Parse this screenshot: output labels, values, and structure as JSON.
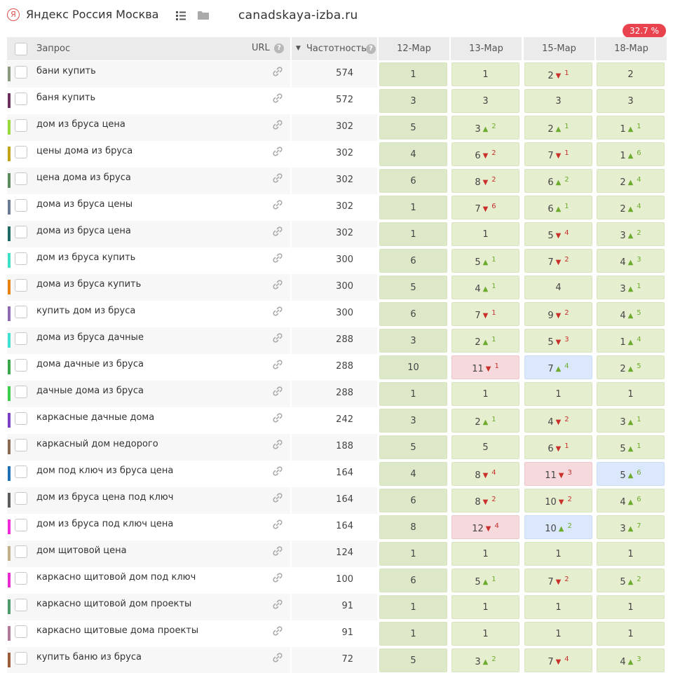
{
  "header": {
    "engine_icon": "yandex-icon",
    "engine_glyph": "Я",
    "region": "Яндекс Россия Москва",
    "site": "canadskaya-izba.ru",
    "visibility_badge": "32.7 %"
  },
  "table": {
    "col_query": "Запрос",
    "col_url": "URL",
    "col_freq": "Частотность",
    "help_glyph": "?",
    "sort_glyph": "▼",
    "dates": [
      "12-Мар",
      "13-Мар",
      "15-Мар",
      "18-Мар"
    ],
    "rows": [
      {
        "query": "бани купить",
        "freq": "574",
        "color": "#8a9a7e",
        "cells": [
          {
            "v": "1",
            "d": "",
            "dir": "",
            "bg": ""
          },
          {
            "v": "1",
            "d": "",
            "dir": "",
            "bg": ""
          },
          {
            "v": "2",
            "d": "1",
            "dir": "down",
            "bg": ""
          },
          {
            "v": "2",
            "d": "",
            "dir": "",
            "bg": ""
          }
        ]
      },
      {
        "query": "баня купить",
        "freq": "572",
        "color": "#6b2f5e",
        "cells": [
          {
            "v": "3",
            "d": "",
            "dir": "",
            "bg": ""
          },
          {
            "v": "3",
            "d": "",
            "dir": "",
            "bg": ""
          },
          {
            "v": "3",
            "d": "",
            "dir": "",
            "bg": ""
          },
          {
            "v": "3",
            "d": "",
            "dir": "",
            "bg": ""
          }
        ]
      },
      {
        "query": "дом из бруса цена",
        "freq": "302",
        "color": "#9ad93b",
        "cells": [
          {
            "v": "5",
            "d": "",
            "dir": "",
            "bg": ""
          },
          {
            "v": "3",
            "d": "2",
            "dir": "up",
            "bg": ""
          },
          {
            "v": "2",
            "d": "1",
            "dir": "up",
            "bg": ""
          },
          {
            "v": "1",
            "d": "1",
            "dir": "up",
            "bg": ""
          }
        ]
      },
      {
        "query": "цены дома из бруса",
        "freq": "302",
        "color": "#c3a318",
        "cells": [
          {
            "v": "4",
            "d": "",
            "dir": "",
            "bg": ""
          },
          {
            "v": "6",
            "d": "2",
            "dir": "down",
            "bg": ""
          },
          {
            "v": "7",
            "d": "1",
            "dir": "down",
            "bg": ""
          },
          {
            "v": "1",
            "d": "6",
            "dir": "up",
            "bg": ""
          }
        ]
      },
      {
        "query": "цена дома из бруса",
        "freq": "302",
        "color": "#5c8a5c",
        "cells": [
          {
            "v": "6",
            "d": "",
            "dir": "",
            "bg": ""
          },
          {
            "v": "8",
            "d": "2",
            "dir": "down",
            "bg": ""
          },
          {
            "v": "6",
            "d": "2",
            "dir": "up",
            "bg": ""
          },
          {
            "v": "2",
            "d": "4",
            "dir": "up",
            "bg": ""
          }
        ]
      },
      {
        "query": "дома из бруса цены",
        "freq": "302",
        "color": "#6c7a95",
        "cells": [
          {
            "v": "1",
            "d": "",
            "dir": "",
            "bg": ""
          },
          {
            "v": "7",
            "d": "6",
            "dir": "down",
            "bg": ""
          },
          {
            "v": "6",
            "d": "1",
            "dir": "up",
            "bg": ""
          },
          {
            "v": "2",
            "d": "4",
            "dir": "up",
            "bg": ""
          }
        ]
      },
      {
        "query": "дома из бруса цена",
        "freq": "302",
        "color": "#1e6a63",
        "cells": [
          {
            "v": "1",
            "d": "",
            "dir": "",
            "bg": ""
          },
          {
            "v": "1",
            "d": "",
            "dir": "",
            "bg": ""
          },
          {
            "v": "5",
            "d": "4",
            "dir": "down",
            "bg": ""
          },
          {
            "v": "3",
            "d": "2",
            "dir": "up",
            "bg": ""
          }
        ]
      },
      {
        "query": "дом из бруса купить",
        "freq": "300",
        "color": "#3de0c4",
        "cells": [
          {
            "v": "6",
            "d": "",
            "dir": "",
            "bg": ""
          },
          {
            "v": "5",
            "d": "1",
            "dir": "up",
            "bg": ""
          },
          {
            "v": "7",
            "d": "2",
            "dir": "down",
            "bg": ""
          },
          {
            "v": "4",
            "d": "3",
            "dir": "up",
            "bg": ""
          }
        ]
      },
      {
        "query": "дома из бруса купить",
        "freq": "300",
        "color": "#e8820c",
        "cells": [
          {
            "v": "5",
            "d": "",
            "dir": "",
            "bg": ""
          },
          {
            "v": "4",
            "d": "1",
            "dir": "up",
            "bg": ""
          },
          {
            "v": "4",
            "d": "",
            "dir": "",
            "bg": ""
          },
          {
            "v": "3",
            "d": "1",
            "dir": "up",
            "bg": ""
          }
        ]
      },
      {
        "query": "купить дом из бруса",
        "freq": "300",
        "color": "#8e6bb0",
        "cells": [
          {
            "v": "6",
            "d": "",
            "dir": "",
            "bg": ""
          },
          {
            "v": "7",
            "d": "1",
            "dir": "down",
            "bg": ""
          },
          {
            "v": "9",
            "d": "2",
            "dir": "down",
            "bg": ""
          },
          {
            "v": "4",
            "d": "5",
            "dir": "up",
            "bg": ""
          }
        ]
      },
      {
        "query": "дома из бруса дачные",
        "freq": "288",
        "color": "#3ee0cf",
        "cells": [
          {
            "v": "3",
            "d": "",
            "dir": "",
            "bg": ""
          },
          {
            "v": "2",
            "d": "1",
            "dir": "up",
            "bg": ""
          },
          {
            "v": "5",
            "d": "3",
            "dir": "down",
            "bg": ""
          },
          {
            "v": "1",
            "d": "4",
            "dir": "up",
            "bg": ""
          }
        ]
      },
      {
        "query": "дома дачные из бруса",
        "freq": "288",
        "color": "#3aa84a",
        "cells": [
          {
            "v": "10",
            "d": "",
            "dir": "",
            "bg": ""
          },
          {
            "v": "11",
            "d": "1",
            "dir": "down",
            "bg": "red"
          },
          {
            "v": "7",
            "d": "4",
            "dir": "up",
            "bg": "blue"
          },
          {
            "v": "2",
            "d": "5",
            "dir": "up",
            "bg": ""
          }
        ]
      },
      {
        "query": "дачные дома из бруса",
        "freq": "288",
        "color": "#3ccd4a",
        "cells": [
          {
            "v": "1",
            "d": "",
            "dir": "",
            "bg": ""
          },
          {
            "v": "1",
            "d": "",
            "dir": "",
            "bg": ""
          },
          {
            "v": "1",
            "d": "",
            "dir": "",
            "bg": ""
          },
          {
            "v": "1",
            "d": "",
            "dir": "",
            "bg": ""
          }
        ]
      },
      {
        "query": "каркасные дачные дома",
        "freq": "242",
        "color": "#7a3fc6",
        "cells": [
          {
            "v": "3",
            "d": "",
            "dir": "",
            "bg": ""
          },
          {
            "v": "2",
            "d": "1",
            "dir": "up",
            "bg": ""
          },
          {
            "v": "4",
            "d": "2",
            "dir": "down",
            "bg": ""
          },
          {
            "v": "3",
            "d": "1",
            "dir": "up",
            "bg": ""
          }
        ]
      },
      {
        "query": "каркасный дом недорого",
        "freq": "188",
        "color": "#8a6a52",
        "cells": [
          {
            "v": "5",
            "d": "",
            "dir": "",
            "bg": ""
          },
          {
            "v": "5",
            "d": "",
            "dir": "",
            "bg": ""
          },
          {
            "v": "6",
            "d": "1",
            "dir": "down",
            "bg": ""
          },
          {
            "v": "5",
            "d": "1",
            "dir": "up",
            "bg": ""
          }
        ]
      },
      {
        "query": "дом под ключ из бруса цена",
        "freq": "164",
        "color": "#1f6fb5",
        "cells": [
          {
            "v": "4",
            "d": "",
            "dir": "",
            "bg": ""
          },
          {
            "v": "8",
            "d": "4",
            "dir": "down",
            "bg": ""
          },
          {
            "v": "11",
            "d": "3",
            "dir": "down",
            "bg": "red"
          },
          {
            "v": "5",
            "d": "6",
            "dir": "up",
            "bg": "blue"
          }
        ]
      },
      {
        "query": "дом из бруса цена под ключ",
        "freq": "164",
        "color": "#5c5c5c",
        "cells": [
          {
            "v": "6",
            "d": "",
            "dir": "",
            "bg": ""
          },
          {
            "v": "8",
            "d": "2",
            "dir": "down",
            "bg": ""
          },
          {
            "v": "10",
            "d": "2",
            "dir": "down",
            "bg": ""
          },
          {
            "v": "4",
            "d": "6",
            "dir": "up",
            "bg": ""
          }
        ]
      },
      {
        "query": "дом из бруса под ключ цена",
        "freq": "164",
        "color": "#ef2ad9",
        "cells": [
          {
            "v": "8",
            "d": "",
            "dir": "",
            "bg": ""
          },
          {
            "v": "12",
            "d": "4",
            "dir": "down",
            "bg": "red"
          },
          {
            "v": "10",
            "d": "2",
            "dir": "up",
            "bg": "blue"
          },
          {
            "v": "3",
            "d": "7",
            "dir": "up",
            "bg": ""
          }
        ]
      },
      {
        "query": "дом щитовой цена",
        "freq": "124",
        "color": "#c2b08a",
        "cells": [
          {
            "v": "1",
            "d": "",
            "dir": "",
            "bg": ""
          },
          {
            "v": "1",
            "d": "",
            "dir": "",
            "bg": ""
          },
          {
            "v": "1",
            "d": "",
            "dir": "",
            "bg": ""
          },
          {
            "v": "1",
            "d": "",
            "dir": "",
            "bg": ""
          }
        ]
      },
      {
        "query": "каркасно щитовой дом под ключ",
        "freq": "100",
        "color": "#e82ad0",
        "cells": [
          {
            "v": "6",
            "d": "",
            "dir": "",
            "bg": ""
          },
          {
            "v": "5",
            "d": "1",
            "dir": "up",
            "bg": ""
          },
          {
            "v": "7",
            "d": "2",
            "dir": "down",
            "bg": ""
          },
          {
            "v": "5",
            "d": "2",
            "dir": "up",
            "bg": ""
          }
        ]
      },
      {
        "query": "каркасно щитовой дом проекты",
        "freq": "91",
        "color": "#4e9a6a",
        "cells": [
          {
            "v": "1",
            "d": "",
            "dir": "",
            "bg": ""
          },
          {
            "v": "1",
            "d": "",
            "dir": "",
            "bg": ""
          },
          {
            "v": "1",
            "d": "",
            "dir": "",
            "bg": ""
          },
          {
            "v": "1",
            "d": "",
            "dir": "",
            "bg": ""
          }
        ]
      },
      {
        "query": "каркасно щитовые дома проекты",
        "freq": "91",
        "color": "#b27a9a",
        "cells": [
          {
            "v": "1",
            "d": "",
            "dir": "",
            "bg": ""
          },
          {
            "v": "1",
            "d": "",
            "dir": "",
            "bg": ""
          },
          {
            "v": "1",
            "d": "",
            "dir": "",
            "bg": ""
          },
          {
            "v": "1",
            "d": "",
            "dir": "",
            "bg": ""
          }
        ]
      },
      {
        "query": "купить баню из бруса",
        "freq": "72",
        "color": "#9a5c3a",
        "cells": [
          {
            "v": "5",
            "d": "",
            "dir": "",
            "bg": ""
          },
          {
            "v": "3",
            "d": "2",
            "dir": "up",
            "bg": ""
          },
          {
            "v": "7",
            "d": "4",
            "dir": "down",
            "bg": ""
          },
          {
            "v": "4",
            "d": "3",
            "dir": "up",
            "bg": ""
          }
        ]
      }
    ]
  },
  "glyphs": {
    "up": "▲",
    "down": "▼"
  },
  "icons": {
    "list": "list-icon",
    "folder": "folder-icon",
    "link": "link-icon",
    "help": "help-icon"
  }
}
